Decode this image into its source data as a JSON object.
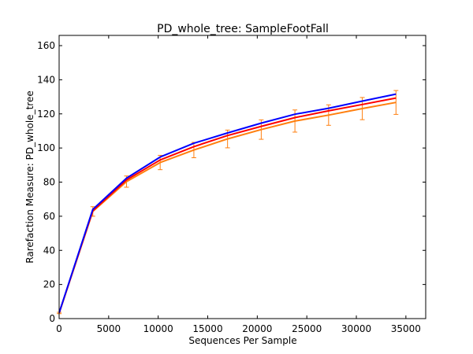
{
  "chart_data": {
    "type": "line",
    "title": "PD_whole_tree: SampleFootFall",
    "xlabel": "Sequences Per Sample",
    "ylabel": "Rarefaction Measure: PD_whole_tree",
    "xlim": [
      0,
      37000
    ],
    "ylim": [
      0,
      166
    ],
    "xticks": [
      0,
      5000,
      10000,
      15000,
      20000,
      25000,
      30000,
      35000
    ],
    "yticks": [
      0,
      20,
      40,
      60,
      80,
      100,
      120,
      140,
      160
    ],
    "grid": false,
    "x": [
      10,
      3400,
      6800,
      10200,
      13600,
      17000,
      20400,
      23800,
      27200,
      30600,
      34000
    ],
    "series": [
      {
        "color": "#0000ff",
        "values": [
          3.5,
          64,
          82.3,
          94.7,
          102.8,
          108.8,
          114.6,
          119.8,
          123.3,
          127.5,
          131.6
        ],
        "error": null
      },
      {
        "color": "#ff0000",
        "values": [
          3.4,
          63.2,
          81.3,
          93,
          100.8,
          107.3,
          112.7,
          117.8,
          121.8,
          125.5,
          129.3
        ],
        "error": null
      },
      {
        "color": "#ff7f0e",
        "values": [
          3.3,
          62.8,
          80.3,
          91.5,
          98.8,
          105.3,
          110.8,
          115.8,
          119.3,
          123.1,
          126.7
        ],
        "error": [
          0.4,
          2.8,
          3.3,
          4.2,
          4.5,
          5.2,
          5.7,
          6.5,
          6,
          6.5,
          7
        ]
      }
    ]
  }
}
